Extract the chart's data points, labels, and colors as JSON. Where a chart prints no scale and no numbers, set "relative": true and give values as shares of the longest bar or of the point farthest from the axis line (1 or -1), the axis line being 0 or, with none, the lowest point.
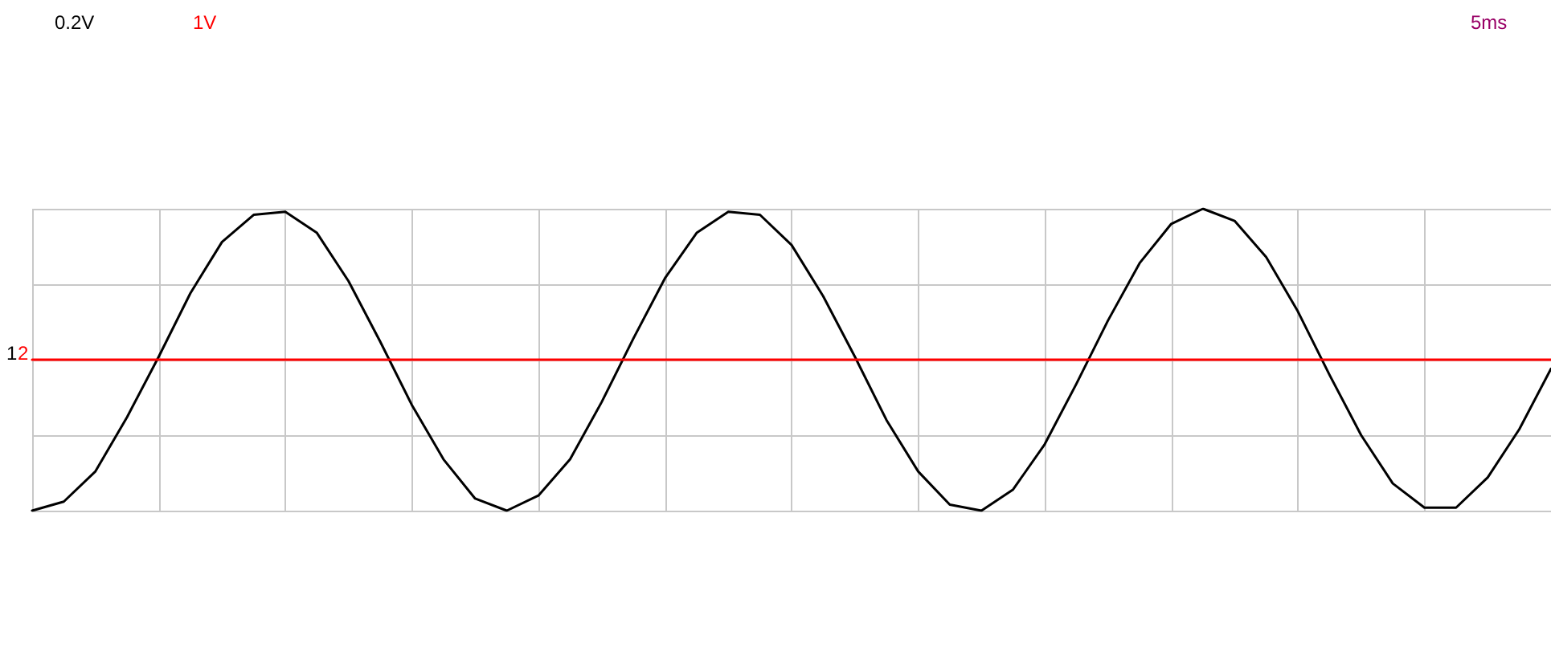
{
  "chart_data": {
    "type": "line",
    "relative": true,
    "grid": true,
    "marker": "none",
    "line_style": "solid",
    "annotations": [
      "0.2V",
      "1V",
      "5ms",
      "1",
      "2"
    ],
    "categories": [
      null,
      null,
      null,
      null,
      null,
      null,
      null,
      null,
      null,
      null,
      null,
      null,
      null,
      null,
      null,
      null,
      null,
      null,
      null,
      null,
      null,
      null,
      null,
      null,
      null,
      null,
      null,
      null,
      null,
      null,
      null,
      null,
      null,
      null,
      null,
      null,
      null,
      null,
      null,
      null,
      null,
      null,
      null,
      null,
      null,
      null,
      null,
      null,
      null
    ],
    "series": [
      {
        "color": "#000000",
        "values": [
          0.0,
          0.03,
          0.13,
          0.31,
          0.51,
          0.72,
          0.89,
          0.98,
          0.99,
          0.92,
          0.76,
          0.56,
          0.35,
          0.17,
          0.04,
          0.0,
          0.05,
          0.17,
          0.36,
          0.57,
          0.77,
          0.92,
          0.99,
          0.98,
          0.88,
          0.71,
          0.51,
          0.3,
          0.13,
          0.02,
          0.0,
          0.07,
          0.22,
          0.42,
          0.63,
          0.82,
          0.95,
          1.0,
          0.96,
          0.84,
          0.66,
          0.45,
          0.25,
          0.09,
          0.01,
          0.01,
          0.11,
          0.27,
          0.47
        ]
      },
      {
        "color": "#ff0000",
        "values": [
          0.5,
          0.5,
          0.5,
          0.5,
          0.5,
          0.5,
          0.5,
          0.5,
          0.5,
          0.5,
          0.5,
          0.5,
          0.5,
          0.5,
          0.5,
          0.5,
          0.5,
          0.5,
          0.5,
          0.5,
          0.5,
          0.5,
          0.5,
          0.5,
          0.5,
          0.5,
          0.5,
          0.5,
          0.5,
          0.5,
          0.5,
          0.5,
          0.5,
          0.5,
          0.5,
          0.5,
          0.5,
          0.5,
          0.5,
          0.5,
          0.5,
          0.5,
          0.5,
          0.5,
          0.5,
          0.5,
          0.5,
          0.5,
          0.5
        ]
      }
    ]
  }
}
